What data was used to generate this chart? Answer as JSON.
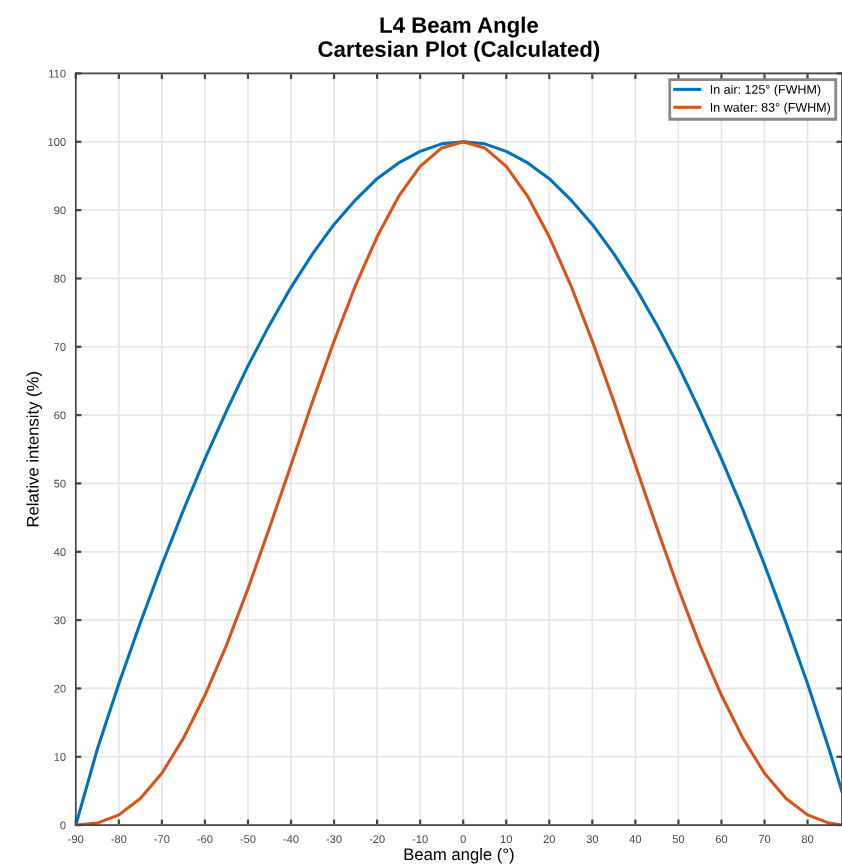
{
  "chart_data": {
    "type": "line",
    "title": "L4 Beam Angle\nCartesian Plot (Calculated)",
    "xlabel": "Beam angle (°)",
    "ylabel": "Relative intensity (%)",
    "x": [
      -90,
      -85,
      -80,
      -75,
      -70,
      -65,
      -60,
      -55,
      -50,
      -45,
      -40,
      -35,
      -30,
      -25,
      -20,
      -15,
      -10,
      -5,
      0,
      5,
      10,
      15,
      20,
      25,
      30,
      35,
      40,
      45,
      50,
      55,
      60,
      65,
      70,
      75,
      80,
      85,
      88
    ],
    "series": [
      {
        "name": "In air: 125° (FWHM)",
        "color": "#0072bd",
        "values": [
          0,
          11.1,
          20.7,
          29.6,
          38.1,
          46.1,
          53.6,
          60.6,
          67.2,
          73.2,
          78.7,
          83.6,
          87.9,
          91.5,
          94.6,
          96.9,
          98.6,
          99.7,
          100,
          99.7,
          98.6,
          96.9,
          94.6,
          91.5,
          87.9,
          83.6,
          78.7,
          73.2,
          67.2,
          60.6,
          53.6,
          46.1,
          38.1,
          29.6,
          20.7,
          11.1,
          4.9
        ]
      },
      {
        "name": "In water: 83° (FWHM)",
        "color": "#d95319",
        "values": [
          0,
          0.3,
          1.5,
          3.9,
          7.6,
          12.7,
          19.0,
          26.3,
          34.6,
          43.5,
          52.7,
          62.0,
          70.8,
          79.0,
          86.1,
          92.0,
          96.4,
          99.1,
          100,
          99.1,
          96.4,
          92.0,
          86.1,
          79.0,
          70.8,
          62.0,
          52.7,
          43.5,
          34.6,
          26.3,
          19.0,
          12.7,
          7.6,
          3.9,
          1.5,
          0.3,
          0
        ]
      }
    ],
    "xlim": [
      -90,
      88
    ],
    "ylim": [
      0,
      110
    ],
    "xticks": [
      -90,
      -80,
      -70,
      -60,
      -50,
      -40,
      -30,
      -20,
      -10,
      0,
      10,
      20,
      30,
      40,
      50,
      60,
      70,
      80
    ],
    "yticks": [
      0,
      10,
      20,
      30,
      40,
      50,
      60,
      70,
      80,
      90,
      100,
      110
    ],
    "grid": true,
    "legend": "top right",
    "marker": "none",
    "line_style": "solid"
  }
}
